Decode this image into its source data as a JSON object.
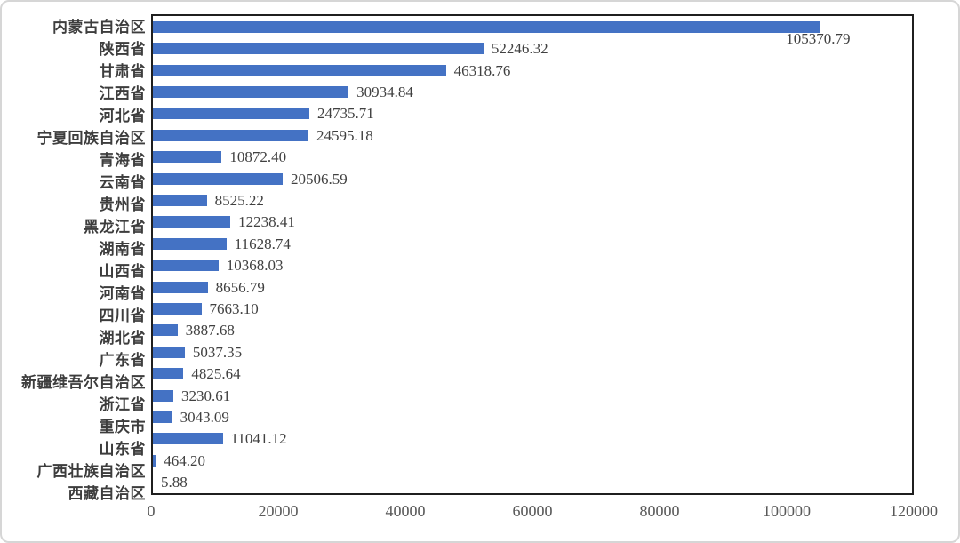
{
  "chart_data": {
    "type": "bar",
    "orientation": "horizontal",
    "title": "",
    "xlabel": "",
    "ylabel": "",
    "xlim": [
      0,
      120000
    ],
    "grid": false,
    "legend": "none",
    "bar_color": "#4472c4",
    "plot_border_color": "#1f1f1f",
    "value_label_color": "#404040",
    "axis_tick_color": "#595959",
    "category_label_color": "#3d3d3d",
    "categories": [
      "内蒙古自治区",
      "陕西省",
      "甘肃省",
      "江西省",
      "河北省",
      "宁夏回族自治区",
      "青海省",
      "云南省",
      "贵州省",
      "黑龙江省",
      "湖南省",
      "山西省",
      "河南省",
      "四川省",
      "湖北省",
      "广东省",
      "新疆维吾尔自治区",
      "浙江省",
      "重庆市",
      "山东省",
      "广西壮族自治区",
      "西藏自治区"
    ],
    "values": [
      105370.79,
      52246.32,
      46318.76,
      30934.84,
      24735.71,
      24595.18,
      10872.4,
      20506.59,
      8525.22,
      12238.41,
      11628.74,
      10368.03,
      8656.79,
      7663.1,
      3887.68,
      5037.35,
      4825.64,
      3230.61,
      3043.09,
      11041.12,
      464.2,
      5.88
    ],
    "value_labels": [
      "105370.79",
      "52246.32",
      "46318.76",
      "30934.84",
      "24735.71",
      "24595.18",
      "10872.40",
      "20506.59",
      "8525.22",
      "12238.41",
      "11628.74",
      "10368.03",
      "8656.79",
      "7663.10",
      "3887.68",
      "5037.35",
      "4825.64",
      "3230.61",
      "3043.09",
      "11041.12",
      "464.20",
      "5.88"
    ],
    "label_below_index": 0,
    "x_ticks": [
      "0",
      "20000",
      "40000",
      "60000",
      "80000",
      "100000",
      "120000"
    ],
    "x_tick_values": [
      0,
      20000,
      40000,
      60000,
      80000,
      100000,
      120000
    ]
  }
}
